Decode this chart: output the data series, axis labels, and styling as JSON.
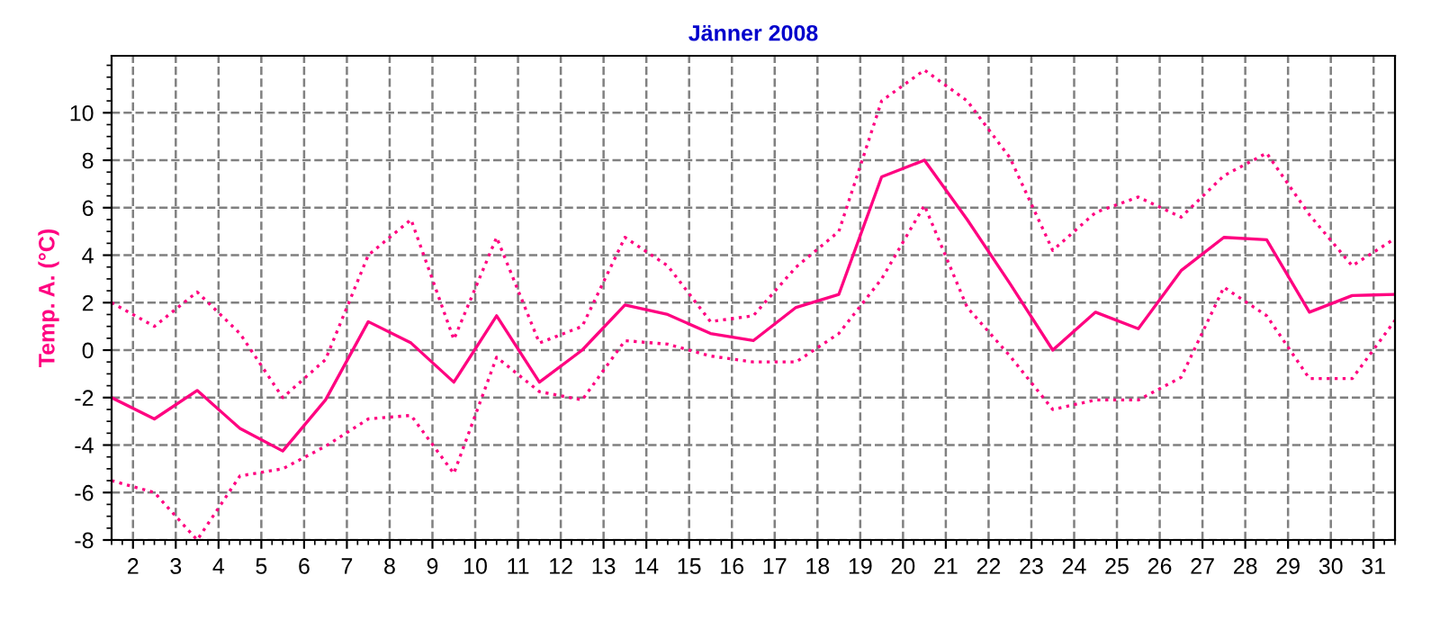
{
  "chart_data": {
    "type": "line",
    "title": "Jänner 2008",
    "ylabel": "Temp. A. (°C)",
    "x": [
      1.5,
      2.5,
      3.5,
      4.5,
      5.5,
      6.5,
      7.5,
      8.5,
      9.5,
      10.5,
      11.5,
      12.5,
      13.5,
      14.5,
      15.5,
      16.5,
      17.5,
      18.5,
      19.5,
      20.5,
      21.5,
      22.5,
      23.5,
      24.5,
      25.5,
      26.5,
      27.5,
      28.5,
      29.5,
      30.5,
      31.5
    ],
    "series": [
      {
        "color": "#ff0080",
        "line_style": "dotted",
        "values": [
          2.0,
          1.0,
          2.45,
          0.7,
          -2.0,
          -0.4,
          4.0,
          5.5,
          0.45,
          4.75,
          0.3,
          1.0,
          4.75,
          3.55,
          1.2,
          1.45,
          3.5,
          5.0,
          10.5,
          11.8,
          10.5,
          8.1,
          4.2,
          5.8,
          6.45,
          5.6,
          7.35,
          8.3,
          5.7,
          3.55,
          4.7
        ]
      },
      {
        "color": "#ff0080",
        "line_style": "solid",
        "values": [
          -2.0,
          -2.9,
          -1.7,
          -3.3,
          -4.25,
          -2.1,
          1.2,
          0.3,
          -1.35,
          1.45,
          -1.35,
          0.0,
          1.9,
          1.5,
          0.7,
          0.4,
          1.8,
          2.35,
          7.3,
          8.0,
          5.5,
          2.8,
          0.0,
          1.6,
          0.9,
          3.35,
          4.75,
          4.65,
          1.6,
          2.3,
          2.35
        ]
      },
      {
        "color": "#ff0080",
        "line_style": "dotted",
        "values": [
          -5.5,
          -6.0,
          -8.0,
          -5.3,
          -5.0,
          -4.05,
          -2.9,
          -2.75,
          -5.2,
          -0.3,
          -1.75,
          -2.1,
          0.4,
          0.25,
          -0.25,
          -0.5,
          -0.5,
          0.7,
          3.0,
          6.1,
          1.8,
          -0.25,
          -2.5,
          -2.1,
          -2.1,
          -1.15,
          2.65,
          1.45,
          -1.2,
          -1.2,
          1.25
        ]
      }
    ],
    "xlim": [
      1.5,
      31.5
    ],
    "xticks": [
      2,
      3,
      4,
      5,
      6,
      7,
      8,
      9,
      10,
      11,
      12,
      13,
      14,
      15,
      16,
      17,
      18,
      19,
      20,
      21,
      22,
      23,
      24,
      25,
      26,
      27,
      28,
      29,
      30,
      31
    ],
    "ylim": [
      -8,
      12.4
    ],
    "yticks": [
      -8,
      -6,
      -4,
      -2,
      0,
      2,
      4,
      6,
      8,
      10
    ],
    "grid": true
  }
}
